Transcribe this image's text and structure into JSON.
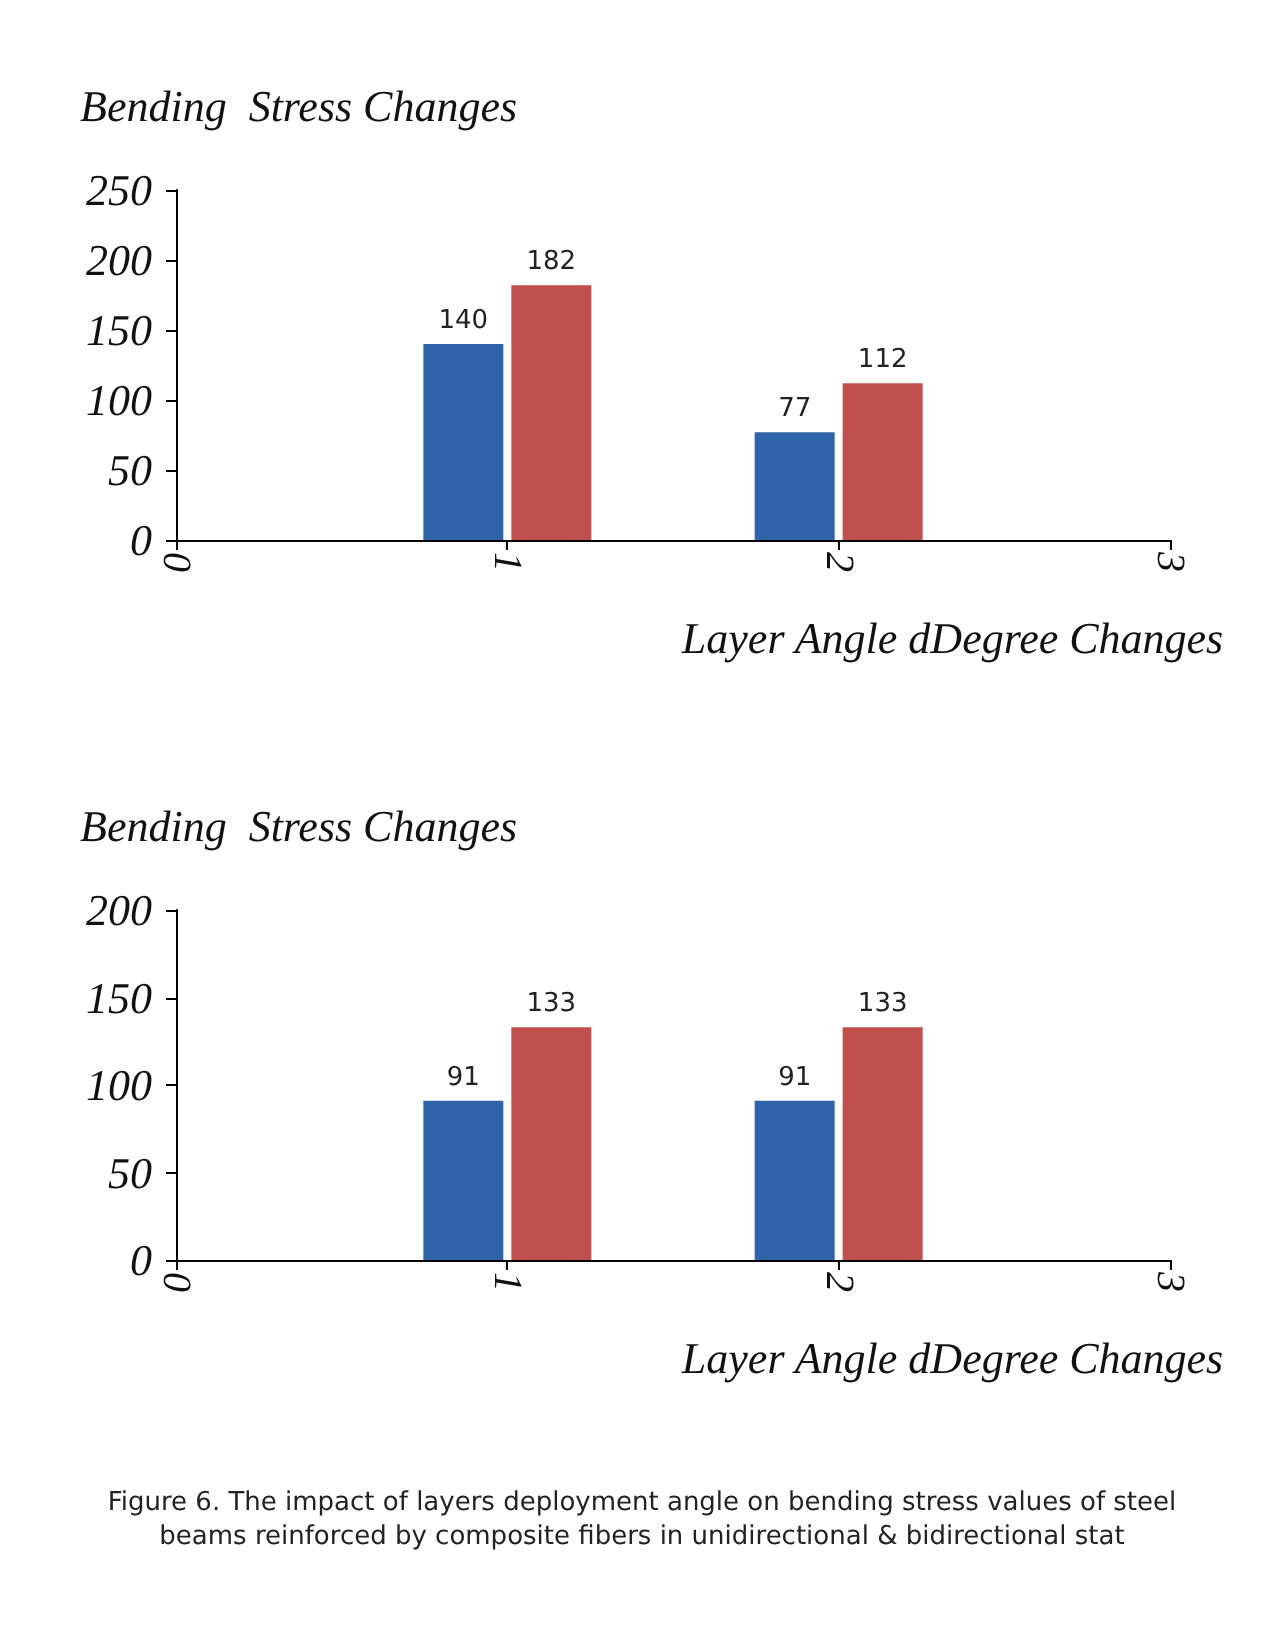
{
  "chart_data": [
    {
      "type": "bar",
      "ylabel": "Bending  Stress Changes",
      "xlabel": "Layer Angle dDegree Changes",
      "categories": [
        "0",
        "1",
        "2",
        "3"
      ],
      "ylim": [
        0,
        250
      ],
      "yticks": [
        0,
        50,
        100,
        150,
        200,
        250
      ],
      "series": [
        {
          "color": "#3064a8",
          "values": [
            null,
            140,
            77,
            null
          ]
        },
        {
          "color": "#c0504d",
          "values": [
            null,
            182,
            112,
            null
          ]
        }
      ],
      "data_labels": true
    },
    {
      "type": "bar",
      "ylabel": "Bending  Stress Changes",
      "xlabel": "Layer Angle dDegree Changes",
      "categories": [
        "0",
        "1",
        "2",
        "3"
      ],
      "ylim": [
        0,
        200
      ],
      "yticks": [
        0,
        50,
        100,
        150,
        200
      ],
      "series": [
        {
          "color": "#3064a8",
          "values": [
            null,
            91,
            91,
            null
          ]
        },
        {
          "color": "#c0504d",
          "values": [
            null,
            133,
            133,
            null
          ]
        }
      ],
      "data_labels": true,
      "annotations": [
        "Figure 6. The impact of layers deployment angle on bending stress values of steel beams reinforced by composite fibers in unidirectional & bidirectional stat"
      ]
    }
  ]
}
